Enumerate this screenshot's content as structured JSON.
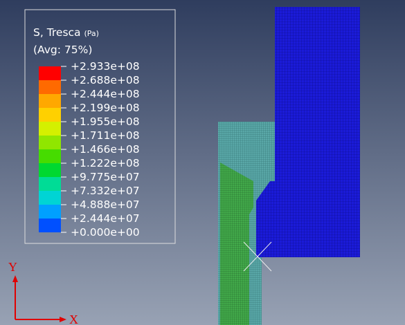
{
  "legend": {
    "title": "S, Tresca",
    "unit": "(Pa)",
    "averaging": "(Avg: 75%)",
    "labels": [
      "+2.933e+08",
      "+2.688e+08",
      "+2.444e+08",
      "+2.199e+08",
      "+1.955e+08",
      "+1.711e+08",
      "+1.466e+08",
      "+1.222e+08",
      "+9.775e+07",
      "+7.332e+07",
      "+4.888e+07",
      "+2.444e+07",
      "+0.000e+00"
    ],
    "colors": [
      "#ff0000",
      "#ff6a00",
      "#ffa800",
      "#ffd000",
      "#d4f000",
      "#90e600",
      "#46dc00",
      "#00d830",
      "#00dc96",
      "#00d4d4",
      "#00a0ff",
      "#0050ff"
    ]
  },
  "triad": {
    "y": "Y",
    "x": "X"
  }
}
